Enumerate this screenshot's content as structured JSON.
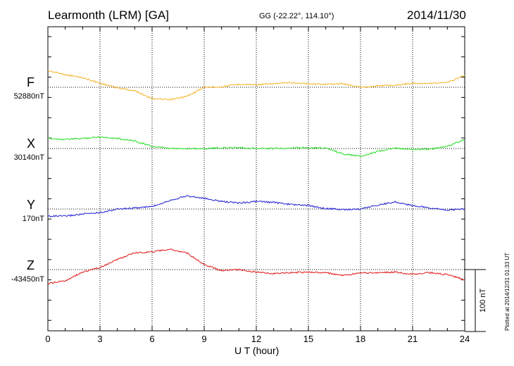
{
  "header": {
    "title": "Learmonth (LRM)  [GA]",
    "coords": "GG (-22.22°, 114.10°)",
    "date": "2014/11/30"
  },
  "footer": {
    "plotted": "Plotted at 2014/12/31 01:33 UT"
  },
  "scale": {
    "label": "100 nT",
    "value_nt": 100
  },
  "chart_data": {
    "type": "line",
    "xlabel": "U T (hour)",
    "xlim": [
      0,
      24
    ],
    "xticks": [
      "0",
      "3",
      "6",
      "9",
      "12",
      "15",
      "18",
      "21",
      "24"
    ],
    "x": [
      0,
      1,
      2,
      3,
      4,
      5,
      6,
      7,
      8,
      9,
      10,
      11,
      12,
      13,
      14,
      15,
      16,
      17,
      18,
      19,
      20,
      21,
      22,
      23,
      24
    ],
    "series": [
      {
        "name": "F",
        "baseline_label": "52880nT",
        "color": "#f5b21f",
        "values": [
          52913,
          52905,
          52899,
          52888,
          52879,
          52873,
          52858,
          52855,
          52862,
          52880,
          52881,
          52886,
          52885,
          52887,
          52889,
          52887,
          52886,
          52887,
          52880,
          52883,
          52884,
          52888,
          52888,
          52889,
          52904
        ]
      },
      {
        "name": "X",
        "baseline_label": "30140nT",
        "color": "#22dd22",
        "values": [
          30160,
          30158,
          30160,
          30163,
          30160,
          30155,
          30144,
          30140,
          30140,
          30140,
          30141,
          30142,
          30140,
          30140,
          30141,
          30142,
          30141,
          30129,
          30125,
          30134,
          30141,
          30138,
          30139,
          30144,
          30158
        ]
      },
      {
        "name": "Y",
        "baseline_label": "170nT",
        "color": "#1a1ad2",
        "values": [
          156,
          156,
          160,
          163,
          170,
          172,
          175,
          187,
          196,
          191,
          185,
          182,
          185,
          183,
          179,
          177,
          171,
          169,
          170,
          178,
          184,
          177,
          172,
          168,
          170
        ]
      },
      {
        "name": "Z",
        "baseline_label": "-43450nT",
        "color": "#e01414",
        "values": [
          -43478,
          -43472,
          -43455,
          -43446,
          -43430,
          -43417,
          -43415,
          -43410,
          -43417,
          -43440,
          -43452,
          -43450,
          -43455,
          -43458,
          -43456,
          -43455,
          -43456,
          -43462,
          -43457,
          -43456,
          -43455,
          -43459,
          -43456,
          -43460,
          -43470
        ]
      }
    ],
    "px_per_nt": 0.72,
    "grid": true
  }
}
